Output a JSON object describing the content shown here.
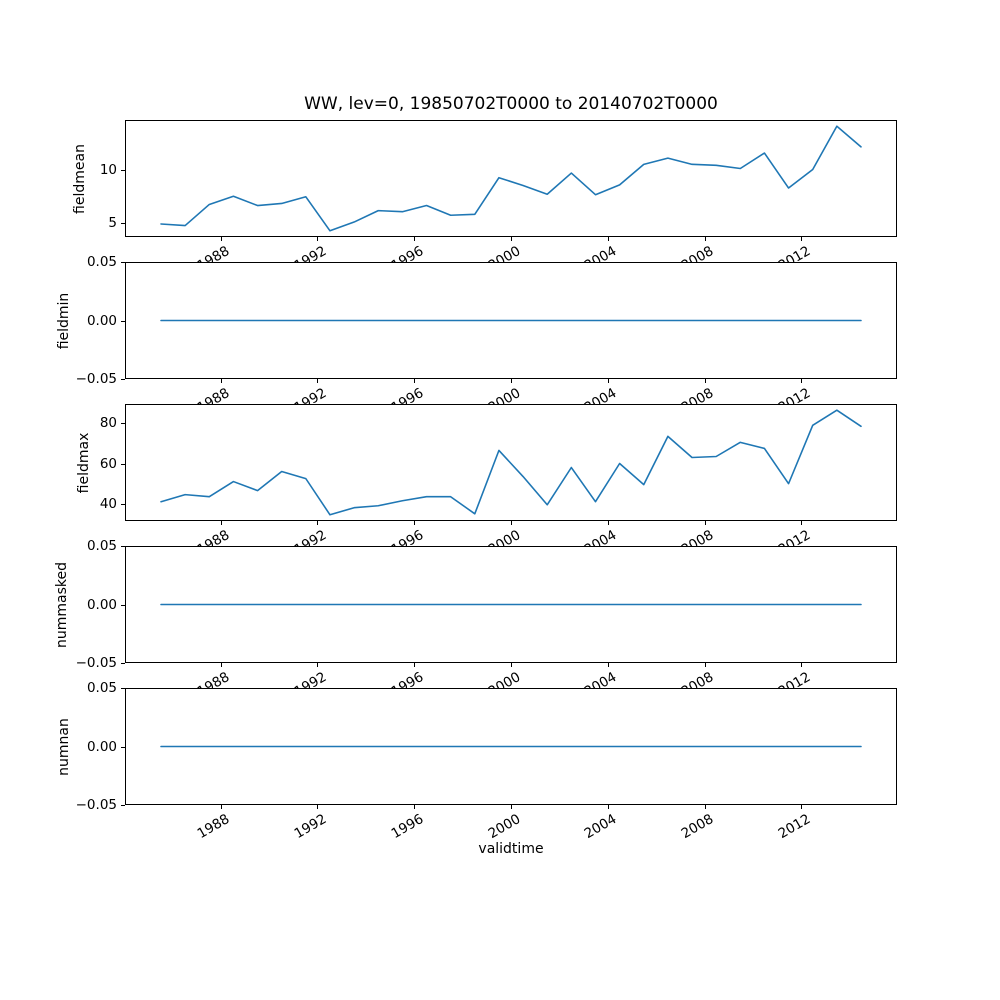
{
  "figure": {
    "background": "#ffffff"
  },
  "chart_data": {
    "type": "line",
    "title": "WW, lev=0, 19850702T0000 to 20140702T0000",
    "xlabel": "validtime",
    "line_color": "#1f77b4",
    "legend": "none",
    "grid": false,
    "x_years": [
      1985,
      1986,
      1987,
      1988,
      1989,
      1990,
      1991,
      1992,
      1993,
      1994,
      1995,
      1996,
      1997,
      1998,
      1999,
      2000,
      2001,
      2002,
      2003,
      2004,
      2005,
      2006,
      2007,
      2008,
      2009,
      2010,
      2011,
      2012,
      2013,
      2014
    ],
    "x_point_offset": 0.5,
    "xlim": [
      1984.05,
      2015.95
    ],
    "xticks": [
      1988,
      1992,
      1996,
      2000,
      2004,
      2008,
      2012
    ],
    "subplots": [
      {
        "ylabel": "fieldmean",
        "ylim": [
          3.64,
          14.81
        ],
        "yticks": [
          {
            "v": 5,
            "label": "5"
          },
          {
            "v": 10,
            "label": "10"
          }
        ],
        "values": [
          4.8,
          4.65,
          6.7,
          7.5,
          6.6,
          6.8,
          7.45,
          4.15,
          5.0,
          6.1,
          6.0,
          6.6,
          5.65,
          5.75,
          9.3,
          8.55,
          7.7,
          9.75,
          7.65,
          8.6,
          10.6,
          11.2,
          10.6,
          10.5,
          10.2,
          11.7,
          8.3,
          10.1,
          14.3,
          12.3
        ]
      },
      {
        "ylabel": "fieldmin",
        "ylim": [
          -0.05,
          0.05
        ],
        "yticks": [
          {
            "v": 0.05,
            "label": "0.05"
          },
          {
            "v": 0,
            "label": "0.00"
          },
          {
            "v": -0.05,
            "label": "−0.05"
          }
        ],
        "values": [
          0,
          0,
          0,
          0,
          0,
          0,
          0,
          0,
          0,
          0,
          0,
          0,
          0,
          0,
          0,
          0,
          0,
          0,
          0,
          0,
          0,
          0,
          0,
          0,
          0,
          0,
          0,
          0,
          0,
          0
        ]
      },
      {
        "ylabel": "fieldmax",
        "ylim": [
          31.9,
          89.1
        ],
        "yticks": [
          {
            "v": 40,
            "label": "40"
          },
          {
            "v": 60,
            "label": "60"
          },
          {
            "v": 80,
            "label": "80"
          }
        ],
        "values": [
          41,
          44.5,
          43.5,
          51,
          46.5,
          56,
          52.5,
          34.5,
          38,
          39,
          41.5,
          43.5,
          43.5,
          35,
          66.5,
          53.5,
          39.5,
          58,
          41,
          60,
          49.5,
          73.5,
          63,
          63.5,
          70.5,
          67.5,
          50,
          79,
          86.5,
          78.5
        ]
      },
      {
        "ylabel": "nummasked",
        "ylim": [
          -0.05,
          0.05
        ],
        "yticks": [
          {
            "v": 0.05,
            "label": "0.05"
          },
          {
            "v": 0,
            "label": "0.00"
          },
          {
            "v": -0.05,
            "label": "−0.05"
          }
        ],
        "values": [
          0,
          0,
          0,
          0,
          0,
          0,
          0,
          0,
          0,
          0,
          0,
          0,
          0,
          0,
          0,
          0,
          0,
          0,
          0,
          0,
          0,
          0,
          0,
          0,
          0,
          0,
          0,
          0,
          0,
          0
        ]
      },
      {
        "ylabel": "numnan",
        "ylim": [
          -0.05,
          0.05
        ],
        "yticks": [
          {
            "v": 0.05,
            "label": "0.05"
          },
          {
            "v": 0,
            "label": "0.00"
          },
          {
            "v": -0.05,
            "label": "−0.05"
          }
        ],
        "values": [
          0,
          0,
          0,
          0,
          0,
          0,
          0,
          0,
          0,
          0,
          0,
          0,
          0,
          0,
          0,
          0,
          0,
          0,
          0,
          0,
          0,
          0,
          0,
          0,
          0,
          0,
          0,
          0,
          0,
          0
        ]
      }
    ]
  }
}
